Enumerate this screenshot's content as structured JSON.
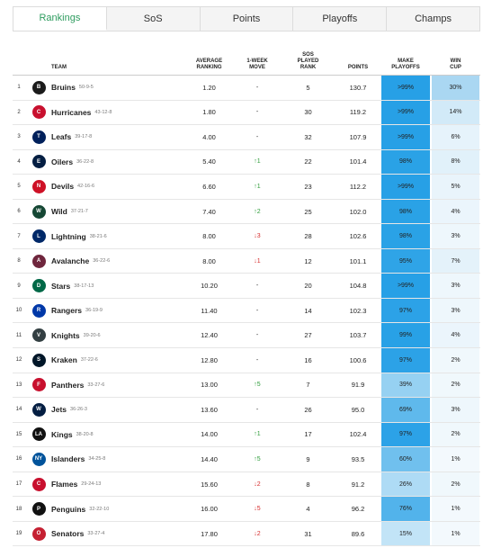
{
  "tabs": [
    {
      "label": "Rankings",
      "active": true
    },
    {
      "label": "SoS",
      "active": false
    },
    {
      "label": "Points",
      "active": false
    },
    {
      "label": "Playoffs",
      "active": false
    },
    {
      "label": "Champs",
      "active": false
    }
  ],
  "headers": {
    "team": "TEAM",
    "avg": [
      "AVERAGE",
      "RANKING"
    ],
    "move": [
      "1-WEEK",
      "MOVE"
    ],
    "sos": [
      "SOS",
      "PLAYED",
      "RANK"
    ],
    "points": "POINTS",
    "playoffs": [
      "MAKE",
      "PLAYOFFS"
    ],
    "cup": [
      "WIN",
      "CUP"
    ]
  },
  "colors": {
    "tab_active": "#2e9c5f",
    "move_up": "#2e9c3a",
    "move_down": "#d62b2b"
  },
  "teams": [
    {
      "rank": "1",
      "name": "Bruins",
      "record": "50-9-5",
      "avg": "1.20",
      "move": "-",
      "dir": "none",
      "sos": "5",
      "points": "130.7",
      "playoffs": ">99%",
      "playoffs_pct": 99.5,
      "cup": "30%",
      "cup_pct": 30,
      "logo_color": "#1b1b1b",
      "logo_text": "B"
    },
    {
      "rank": "2",
      "name": "Hurricanes",
      "record": "43-12-8",
      "avg": "1.80",
      "move": "-",
      "dir": "none",
      "sos": "30",
      "points": "119.2",
      "playoffs": ">99%",
      "playoffs_pct": 99.5,
      "cup": "14%",
      "cup_pct": 14,
      "logo_color": "#c8102e",
      "logo_text": "C"
    },
    {
      "rank": "3",
      "name": "Leafs",
      "record": "39-17-8",
      "avg": "4.00",
      "move": "-",
      "dir": "none",
      "sos": "32",
      "points": "107.9",
      "playoffs": ">99%",
      "playoffs_pct": 99.5,
      "cup": "6%",
      "cup_pct": 6,
      "logo_color": "#00205b",
      "logo_text": "T"
    },
    {
      "rank": "4",
      "name": "Oilers",
      "record": "36-22-8",
      "avg": "5.40",
      "move": "1",
      "dir": "up",
      "sos": "22",
      "points": "101.4",
      "playoffs": "98%",
      "playoffs_pct": 98,
      "cup": "8%",
      "cup_pct": 8,
      "logo_color": "#041e42",
      "logo_text": "E"
    },
    {
      "rank": "5",
      "name": "Devils",
      "record": "42-16-6",
      "avg": "6.60",
      "move": "1",
      "dir": "up",
      "sos": "23",
      "points": "112.2",
      "playoffs": ">99%",
      "playoffs_pct": 99.5,
      "cup": "5%",
      "cup_pct": 5,
      "logo_color": "#ce1126",
      "logo_text": "N"
    },
    {
      "rank": "6",
      "name": "Wild",
      "record": "37-21-7",
      "avg": "7.40",
      "move": "2",
      "dir": "up",
      "sos": "25",
      "points": "102.0",
      "playoffs": "98%",
      "playoffs_pct": 98,
      "cup": "4%",
      "cup_pct": 4,
      "logo_color": "#154734",
      "logo_text": "W"
    },
    {
      "rank": "7",
      "name": "Lightning",
      "record": "38-21-6",
      "avg": "8.00",
      "move": "3",
      "dir": "down",
      "sos": "28",
      "points": "102.6",
      "playoffs": "98%",
      "playoffs_pct": 98,
      "cup": "3%",
      "cup_pct": 3,
      "logo_color": "#002868",
      "logo_text": "L"
    },
    {
      "rank": "8",
      "name": "Avalanche",
      "record": "36-22-6",
      "avg": "8.00",
      "move": "1",
      "dir": "down",
      "sos": "12",
      "points": "101.1",
      "playoffs": "95%",
      "playoffs_pct": 95,
      "cup": "7%",
      "cup_pct": 7,
      "logo_color": "#6f263d",
      "logo_text": "A"
    },
    {
      "rank": "9",
      "name": "Stars",
      "record": "38-17-13",
      "avg": "10.20",
      "move": "-",
      "dir": "none",
      "sos": "20",
      "points": "104.8",
      "playoffs": ">99%",
      "playoffs_pct": 99.5,
      "cup": "3%",
      "cup_pct": 3,
      "logo_color": "#006847",
      "logo_text": "D"
    },
    {
      "rank": "10",
      "name": "Rangers",
      "record": "36-19-9",
      "avg": "11.40",
      "move": "-",
      "dir": "none",
      "sos": "14",
      "points": "102.3",
      "playoffs": "97%",
      "playoffs_pct": 97,
      "cup": "3%",
      "cup_pct": 3,
      "logo_color": "#0038a8",
      "logo_text": "R"
    },
    {
      "rank": "11",
      "name": "Knights",
      "record": "39-20-6",
      "avg": "12.40",
      "move": "-",
      "dir": "none",
      "sos": "27",
      "points": "103.7",
      "playoffs": "99%",
      "playoffs_pct": 99,
      "cup": "4%",
      "cup_pct": 4,
      "logo_color": "#333f42",
      "logo_text": "V"
    },
    {
      "rank": "12",
      "name": "Kraken",
      "record": "37-22-6",
      "avg": "12.80",
      "move": "-",
      "dir": "none",
      "sos": "16",
      "points": "100.6",
      "playoffs": "97%",
      "playoffs_pct": 97,
      "cup": "2%",
      "cup_pct": 2,
      "logo_color": "#001628",
      "logo_text": "S"
    },
    {
      "rank": "13",
      "name": "Panthers",
      "record": "33-27-6",
      "avg": "13.00",
      "move": "5",
      "dir": "up",
      "sos": "7",
      "points": "91.9",
      "playoffs": "39%",
      "playoffs_pct": 39,
      "cup": "2%",
      "cup_pct": 2,
      "logo_color": "#c8102e",
      "logo_text": "F"
    },
    {
      "rank": "14",
      "name": "Jets",
      "record": "36-26-3",
      "avg": "13.60",
      "move": "-",
      "dir": "none",
      "sos": "26",
      "points": "95.0",
      "playoffs": "69%",
      "playoffs_pct": 69,
      "cup": "3%",
      "cup_pct": 3,
      "logo_color": "#041e42",
      "logo_text": "W"
    },
    {
      "rank": "15",
      "name": "Kings",
      "record": "38-20-8",
      "avg": "14.00",
      "move": "1",
      "dir": "up",
      "sos": "17",
      "points": "102.4",
      "playoffs": "97%",
      "playoffs_pct": 97,
      "cup": "2%",
      "cup_pct": 2,
      "logo_color": "#111111",
      "logo_text": "LA"
    },
    {
      "rank": "16",
      "name": "Islanders",
      "record": "34-25-8",
      "avg": "14.40",
      "move": "5",
      "dir": "up",
      "sos": "9",
      "points": "93.5",
      "playoffs": "60%",
      "playoffs_pct": 60,
      "cup": "1%",
      "cup_pct": 1,
      "logo_color": "#00539b",
      "logo_text": "NY"
    },
    {
      "rank": "17",
      "name": "Flames",
      "record": "29-24-13",
      "avg": "15.60",
      "move": "2",
      "dir": "down",
      "sos": "8",
      "points": "91.2",
      "playoffs": "26%",
      "playoffs_pct": 26,
      "cup": "2%",
      "cup_pct": 2,
      "logo_color": "#c8102e",
      "logo_text": "C"
    },
    {
      "rank": "18",
      "name": "Penguins",
      "record": "32-22-10",
      "avg": "16.00",
      "move": "5",
      "dir": "down",
      "sos": "4",
      "points": "96.2",
      "playoffs": "76%",
      "playoffs_pct": 76,
      "cup": "1%",
      "cup_pct": 1,
      "logo_color": "#111111",
      "logo_text": "P"
    },
    {
      "rank": "19",
      "name": "Senators",
      "record": "33-27-4",
      "avg": "17.80",
      "move": "2",
      "dir": "down",
      "sos": "31",
      "points": "89.6",
      "playoffs": "15%",
      "playoffs_pct": 15,
      "cup": "1%",
      "cup_pct": 1,
      "logo_color": "#c52032",
      "logo_text": "O"
    }
  ]
}
